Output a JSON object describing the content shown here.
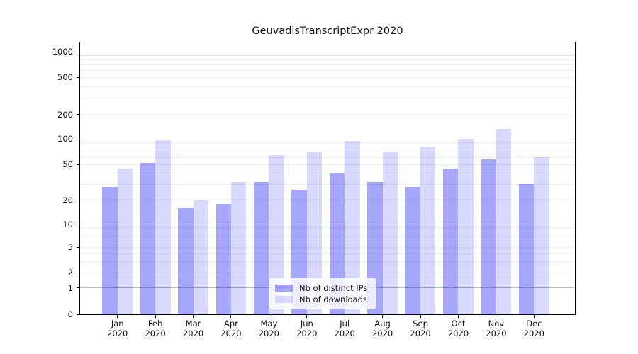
{
  "chart_data": {
    "type": "bar",
    "title": "GeuvadisTranscriptExpr 2020",
    "categories": [
      "Jan 2020",
      "Feb 2020",
      "Mar 2020",
      "Apr 2020",
      "May 2020",
      "Jun 2020",
      "Jul 2020",
      "Aug 2020",
      "Sep 2020",
      "Oct 2020",
      "Nov 2020",
      "Dec 2020"
    ],
    "series": [
      {
        "name": "Nb of distinct IPs",
        "color": "#0000f0",
        "alpha": 0.35,
        "values": [
          28,
          52,
          16,
          18,
          32,
          26,
          40,
          32,
          28,
          45,
          58,
          30
        ]
      },
      {
        "name": "Nb of downloads",
        "color": "#0000f0",
        "alpha": 0.15,
        "values": [
          45,
          97,
          20,
          32,
          64,
          70,
          94,
          71,
          79,
          98,
          132,
          61
        ]
      }
    ],
    "xlabel": "",
    "ylabel": "",
    "yscale": "symlog",
    "yticks": [
      0,
      1,
      2,
      5,
      10,
      20,
      50,
      100,
      200,
      500,
      1000
    ],
    "ylim": [
      0,
      1070
    ],
    "grid": "horizontal, log major + minor",
    "legend": {
      "position": "lower center",
      "labels": [
        "Nb of distinct IPs",
        "Nb of downloads"
      ]
    },
    "colors": {
      "bar_ips_rendered": "#a6a6f9",
      "bar_downloads_rendered": "#d9d9fc",
      "major_grid": "#bdbdbd",
      "minor_grid": "#ececec",
      "axis": "#000000"
    }
  }
}
